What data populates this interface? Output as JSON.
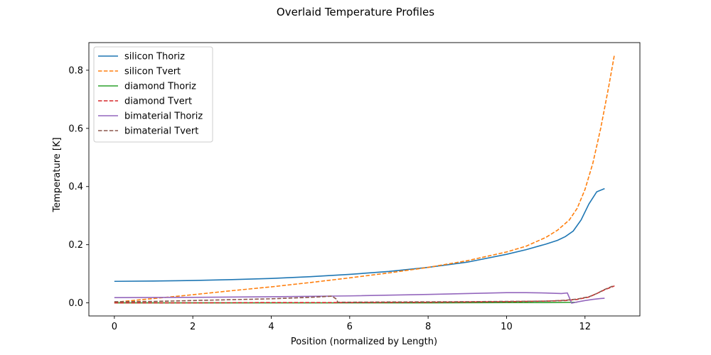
{
  "chart_data": {
    "type": "line",
    "title": "Overlaid Temperature Profiles",
    "xlabel": "Position (normalized by Length)",
    "ylabel": "Temperature [K]",
    "xlim": [
      -0.65,
      13.4
    ],
    "ylim": [
      -0.045,
      0.895
    ],
    "xticks": [
      0,
      2,
      4,
      6,
      8,
      10,
      12
    ],
    "yticks": [
      0.0,
      0.2,
      0.4,
      0.6,
      0.8
    ],
    "ytick_labels": [
      "0.0",
      "0.2",
      "0.4",
      "0.6",
      "0.8"
    ],
    "grid": false,
    "legend_position": "top-left",
    "series": [
      {
        "name": "silicon Thoriz",
        "color": "#1f77b4",
        "dash": "solid",
        "x": [
          0,
          1,
          2,
          3,
          4,
          5,
          6,
          7,
          8,
          9,
          10,
          10.5,
          11,
          11.3,
          11.5,
          11.7,
          11.9,
          12.1,
          12.3,
          12.5
        ],
        "y": [
          0.074,
          0.075,
          0.077,
          0.08,
          0.084,
          0.09,
          0.098,
          0.108,
          0.122,
          0.14,
          0.167,
          0.183,
          0.202,
          0.215,
          0.228,
          0.247,
          0.285,
          0.34,
          0.382,
          0.393
        ]
      },
      {
        "name": "silicon Tvert",
        "color": "#ff7f0e",
        "dash": "dashed",
        "x": [
          0,
          1,
          2,
          3,
          4,
          5,
          6,
          7,
          8,
          9,
          10,
          10.5,
          11,
          11.3,
          11.6,
          11.8,
          12.0,
          12.2,
          12.4,
          12.6,
          12.75
        ],
        "y": [
          0.002,
          0.015,
          0.028,
          0.042,
          0.055,
          0.07,
          0.086,
          0.103,
          0.122,
          0.145,
          0.175,
          0.195,
          0.225,
          0.25,
          0.285,
          0.325,
          0.39,
          0.48,
          0.6,
          0.74,
          0.853
        ]
      },
      {
        "name": "diamond Thoriz",
        "color": "#2ca02c",
        "dash": "solid",
        "x": [
          0,
          2,
          4,
          6,
          8,
          10,
          11,
          11.8
        ],
        "y": [
          0.0,
          0.0,
          0.0,
          0.0,
          0.0,
          0.001,
          0.001,
          0.002
        ]
      },
      {
        "name": "diamond Tvert",
        "color": "#d62728",
        "dash": "dashed",
        "x": [
          0,
          2,
          4,
          6,
          8,
          10,
          11,
          11.5,
          11.8,
          12.1,
          12.3,
          12.5,
          12.75
        ],
        "y": [
          0.0,
          0.0,
          0.001,
          0.001,
          0.002,
          0.004,
          0.006,
          0.008,
          0.012,
          0.02,
          0.032,
          0.045,
          0.058
        ]
      },
      {
        "name": "bimaterial Thoriz",
        "color": "#9467bd",
        "dash": "solid",
        "x": [
          0,
          2,
          4,
          6,
          8,
          9,
          10,
          10.5,
          11,
          11.4,
          11.55,
          11.62,
          11.66,
          11.8,
          12.0,
          12.2,
          12.4,
          12.5
        ],
        "y": [
          0.018,
          0.019,
          0.021,
          0.024,
          0.029,
          0.032,
          0.035,
          0.035,
          0.034,
          0.032,
          0.034,
          0.012,
          -0.001,
          0.003,
          0.008,
          0.012,
          0.015,
          0.016
        ]
      },
      {
        "name": "bimaterial Tvert",
        "color": "#8c564b",
        "dash": "dashed",
        "x": [
          0,
          1,
          2,
          3,
          4,
          5,
          5.55,
          5.65,
          5.7,
          7,
          9,
          11,
          11.5,
          11.8,
          12.1,
          12.3,
          12.5,
          12.75
        ],
        "y": [
          0.004,
          0.005,
          0.008,
          0.011,
          0.014,
          0.019,
          0.023,
          0.014,
          0.002,
          0.003,
          0.004,
          0.006,
          0.009,
          0.013,
          0.021,
          0.032,
          0.046,
          0.06
        ]
      }
    ]
  }
}
